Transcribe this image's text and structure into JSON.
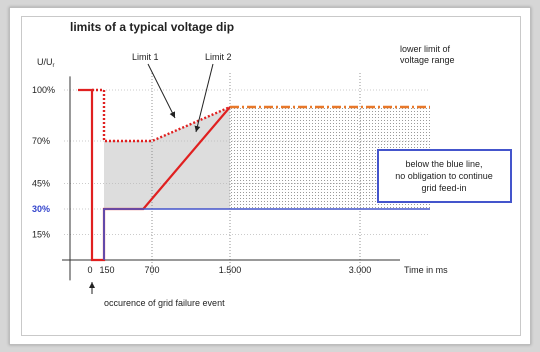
{
  "chart_data": {
    "type": "line",
    "title": "limits of a typical voltage dip",
    "ylabel": "U/U",
    "ylabel_subscript": "r",
    "xlabel": "Time in ms",
    "x_ticks": [
      {
        "value": 0,
        "label": "0"
      },
      {
        "value": 150,
        "label": "150"
      },
      {
        "value": 700,
        "label": "700"
      },
      {
        "value": 1500,
        "label": "1.500"
      },
      {
        "value": 3000,
        "label": "3.000"
      }
    ],
    "y_ticks": [
      {
        "value": 100,
        "label": "100%"
      },
      {
        "value": 70,
        "label": "70%"
      },
      {
        "value": 45,
        "label": "45%"
      },
      {
        "value": 30,
        "label": "30%",
        "highlight": true
      },
      {
        "value": 15,
        "label": "15%"
      }
    ],
    "xlim": [
      -300,
      3800
    ],
    "ylim": [
      -15,
      115
    ],
    "series": [
      {
        "name": "Limit 1",
        "style": "dotted",
        "color": "#e02020",
        "x": [
          0,
          150,
          150,
          700,
          1500
        ],
        "y": [
          100,
          100,
          70,
          70,
          90
        ]
      },
      {
        "name": "Limit 2",
        "style": "solid",
        "color": "#e02020",
        "x": [
          -150,
          0,
          0,
          150,
          150,
          600,
          1500
        ],
        "y": [
          100,
          100,
          0,
          0,
          30,
          30,
          90
        ]
      },
      {
        "name": "lower limit of voltage range",
        "style": "dashdot",
        "color": "#e8782a",
        "x": [
          1500,
          3600
        ],
        "y": [
          90,
          90
        ]
      },
      {
        "name": "",
        "style": "solid",
        "color": "#4455cc",
        "x": [
          150,
          150,
          3600
        ],
        "y": [
          0,
          30,
          30
        ]
      }
    ],
    "annotations": {
      "limit1": "Limit 1",
      "limit2": "Limit 2",
      "lower_limit_line1": "lower limit of",
      "lower_limit_line2": "voltage range",
      "blue_box_line1": "below the blue line,",
      "blue_box_line2": "no obligation to continue",
      "blue_box_line3": "grid feed-in",
      "event_label": "occurence of grid failure event"
    },
    "colors": {
      "red": "#e02020",
      "orange": "#e8782a",
      "blue": "#4455cc",
      "shade": "#d5d5d5"
    },
    "grid": true
  }
}
